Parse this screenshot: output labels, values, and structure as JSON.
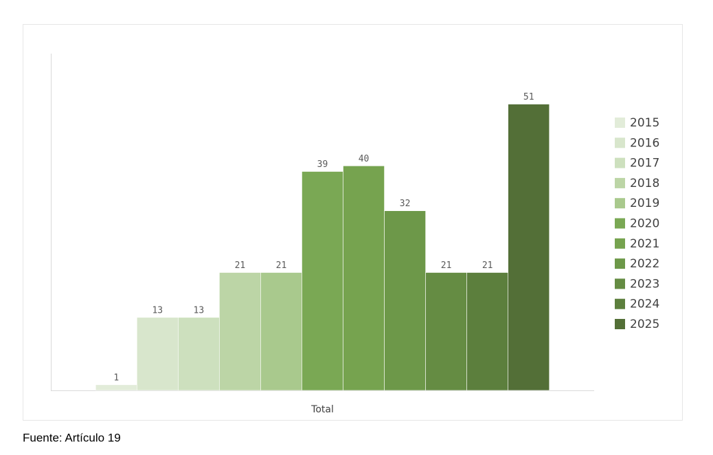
{
  "chart_data": {
    "type": "bar",
    "categories": [
      "Total"
    ],
    "series": [
      {
        "name": "2015",
        "color": "#e2ecd9",
        "values": [
          1
        ]
      },
      {
        "name": "2016",
        "color": "#d8e6cc",
        "values": [
          13
        ]
      },
      {
        "name": "2017",
        "color": "#cde0be",
        "values": [
          13
        ]
      },
      {
        "name": "2018",
        "color": "#bcd5a6",
        "values": [
          21
        ]
      },
      {
        "name": "2019",
        "color": "#a9c98d",
        "values": [
          21
        ]
      },
      {
        "name": "2020",
        "color": "#7aa854",
        "values": [
          39
        ]
      },
      {
        "name": "2021",
        "color": "#76a34f",
        "values": [
          40
        ]
      },
      {
        "name": "2022",
        "color": "#6d9849",
        "values": [
          32
        ]
      },
      {
        "name": "2023",
        "color": "#658c43",
        "values": [
          21
        ]
      },
      {
        "name": "2024",
        "color": "#5c7f3d",
        "values": [
          21
        ]
      },
      {
        "name": "2025",
        "color": "#536f37",
        "values": [
          51
        ]
      }
    ],
    "ylim": [
      0,
      60
    ],
    "legend": "right",
    "source": "Fuente: Artículo 19"
  }
}
